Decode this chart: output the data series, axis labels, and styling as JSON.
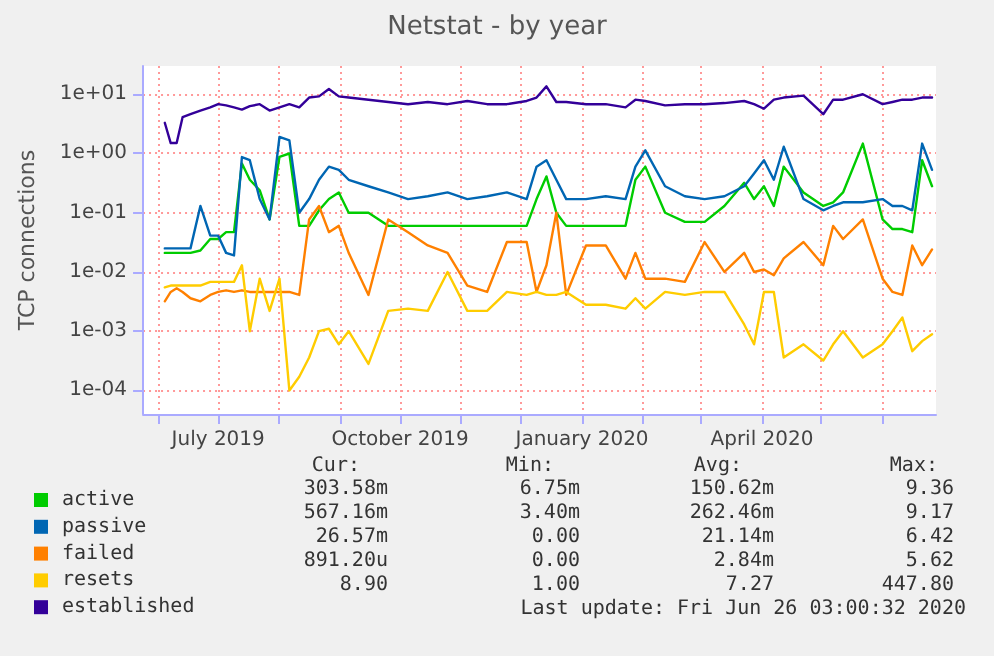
{
  "chart_data": {
    "type": "line",
    "title": "Netstat - by year",
    "ylabel": "TCP connections",
    "x": [
      "2019-06-04",
      "2019-06-07",
      "2019-06-10",
      "2019-06-13",
      "2019-06-17",
      "2019-06-22",
      "2019-06-27",
      "2019-07-01",
      "2019-07-05",
      "2019-07-09",
      "2019-07-13",
      "2019-07-17",
      "2019-07-22",
      "2019-07-27",
      "2019-08-01",
      "2019-08-06",
      "2019-08-11",
      "2019-08-16",
      "2019-08-21",
      "2019-08-26",
      "2019-08-31",
      "2019-09-05",
      "2019-09-15",
      "2019-09-25",
      "2019-10-05",
      "2019-10-15",
      "2019-10-25",
      "2019-11-04",
      "2019-11-14",
      "2019-11-24",
      "2019-12-04",
      "2019-12-09",
      "2019-12-14",
      "2019-12-19",
      "2019-12-24",
      "2020-01-03",
      "2020-01-13",
      "2020-01-23",
      "2020-01-28",
      "2020-02-02",
      "2020-02-12",
      "2020-02-22",
      "2020-03-03",
      "2020-03-13",
      "2020-03-23",
      "2020-03-28",
      "2020-04-02",
      "2020-04-07",
      "2020-04-12",
      "2020-04-22",
      "2020-05-02",
      "2020-05-07",
      "2020-05-12",
      "2020-05-22",
      "2020-06-01",
      "2020-06-06",
      "2020-06-11",
      "2020-06-16",
      "2020-06-21",
      "2020-06-26"
    ],
    "series": [
      {
        "name": "active",
        "color": "#00cc00",
        "values": [
          0.021,
          0.021,
          0.021,
          0.021,
          0.021,
          0.023,
          0.036,
          0.036,
          0.047,
          0.047,
          0.68,
          0.36,
          0.24,
          0.077,
          0.88,
          1.0,
          0.06,
          0.06,
          0.11,
          0.17,
          0.22,
          0.1,
          0.1,
          0.06,
          0.06,
          0.06,
          0.06,
          0.06,
          0.06,
          0.06,
          0.06,
          0.17,
          0.41,
          0.1,
          0.06,
          0.06,
          0.06,
          0.06,
          0.36,
          0.6,
          0.1,
          0.07,
          0.07,
          0.13,
          0.32,
          0.17,
          0.28,
          0.13,
          0.6,
          0.22,
          0.13,
          0.15,
          0.22,
          1.47,
          0.077,
          0.053,
          0.053,
          0.047,
          0.77,
          0.28
        ]
      },
      {
        "name": "passive",
        "color": "#0066b3",
        "values": [
          0.025,
          0.025,
          0.025,
          0.025,
          0.025,
          0.13,
          0.041,
          0.041,
          0.021,
          0.019,
          0.87,
          0.77,
          0.17,
          0.077,
          1.9,
          1.67,
          0.1,
          0.17,
          0.36,
          0.6,
          0.53,
          0.36,
          0.28,
          0.22,
          0.17,
          0.19,
          0.22,
          0.17,
          0.19,
          0.22,
          0.17,
          0.6,
          0.77,
          0.36,
          0.17,
          0.17,
          0.19,
          0.17,
          0.6,
          1.13,
          0.28,
          0.19,
          0.17,
          0.19,
          0.28,
          0.46,
          0.77,
          0.36,
          1.3,
          0.17,
          0.11,
          0.13,
          0.15,
          0.15,
          0.17,
          0.13,
          0.13,
          0.11,
          1.47,
          0.53
        ]
      },
      {
        "name": "failed",
        "color": "#ff8000",
        "values": [
          0.0032,
          0.0046,
          0.0053,
          0.0046,
          0.0036,
          0.0032,
          0.0041,
          0.0046,
          0.0049,
          0.0046,
          0.0049,
          0.0046,
          0.0046,
          0.0046,
          0.0046,
          0.0046,
          0.0041,
          0.077,
          0.13,
          0.047,
          0.06,
          0.021,
          0.0041,
          0.077,
          0.047,
          0.028,
          0.021,
          0.0059,
          0.0046,
          0.032,
          0.032,
          0.0046,
          0.013,
          0.1,
          0.0041,
          0.028,
          0.028,
          0.0077,
          0.021,
          0.0077,
          0.0077,
          0.0068,
          0.032,
          0.01,
          0.021,
          0.01,
          0.011,
          0.0088,
          0.017,
          0.032,
          0.013,
          0.06,
          0.036,
          0.077,
          0.0077,
          0.0046,
          0.0041,
          0.028,
          0.013,
          0.024
        ]
      },
      {
        "name": "resets",
        "color": "#ffcc00",
        "values": [
          0.0055,
          0.0059,
          0.0059,
          0.0059,
          0.0059,
          0.0059,
          0.0068,
          0.0068,
          0.0068,
          0.0068,
          0.013,
          0.001,
          0.0077,
          0.0022,
          0.0077,
          0.0001,
          0.00017,
          0.00036,
          0.001,
          0.0011,
          0.0006,
          0.001,
          0.00028,
          0.0022,
          0.0024,
          0.0022,
          0.01,
          0.0022,
          0.0022,
          0.0046,
          0.0041,
          0.0046,
          0.0041,
          0.0041,
          0.0046,
          0.0028,
          0.0028,
          0.0024,
          0.0036,
          0.0024,
          0.0046,
          0.0041,
          0.0046,
          0.0046,
          0.0013,
          0.0006,
          0.0046,
          0.0046,
          0.00036,
          0.0006,
          0.00032,
          0.0006,
          0.001,
          0.00036,
          0.0006,
          0.001,
          0.0017,
          0.00046,
          0.00068,
          0.00089
        ]
      },
      {
        "name": "established",
        "color": "#330099",
        "values": [
          3.3,
          1.5,
          1.5,
          4.1,
          4.6,
          5.3,
          6.0,
          6.8,
          6.5,
          6.0,
          5.5,
          6.3,
          6.8,
          5.3,
          6.0,
          6.8,
          6.0,
          8.8,
          9.2,
          12.3,
          9.2,
          8.8,
          8.1,
          7.4,
          6.8,
          7.4,
          6.8,
          7.7,
          6.8,
          6.8,
          7.7,
          8.8,
          13.6,
          7.4,
          7.4,
          6.8,
          6.8,
          6.0,
          8.1,
          7.7,
          6.5,
          6.8,
          6.8,
          7.1,
          7.7,
          6.8,
          5.7,
          8.1,
          8.8,
          9.5,
          4.6,
          8.1,
          8.1,
          10.0,
          6.8,
          7.4,
          8.1,
          8.1,
          8.8,
          8.8
        ]
      }
    ],
    "log": "y",
    "ylim": [
      4e-05,
      30
    ],
    "yticks": [
      {
        "value": 0.0001,
        "label": "1e-04"
      },
      {
        "value": 0.001,
        "label": "1e-03"
      },
      {
        "value": 0.01,
        "label": "1e-02"
      },
      {
        "value": 0.1,
        "label": "1e-01"
      },
      {
        "value": 1,
        "label": "1e+00"
      },
      {
        "value": 10,
        "label": "1e+01"
      }
    ],
    "xlim": [
      "2019-05-24",
      "2020-06-28"
    ],
    "xticks": [
      {
        "value": "2019-06-01",
        "label": null
      },
      {
        "value": "2019-07-01",
        "label": "July 2019"
      },
      {
        "value": "2019-08-01",
        "label": null
      },
      {
        "value": "2019-09-01",
        "label": null
      },
      {
        "value": "2019-10-01",
        "label": "October 2019"
      },
      {
        "value": "2019-11-01",
        "label": null
      },
      {
        "value": "2019-12-01",
        "label": null
      },
      {
        "value": "2020-01-01",
        "label": "January 2020"
      },
      {
        "value": "2020-02-01",
        "label": null
      },
      {
        "value": "2020-03-01",
        "label": null
      },
      {
        "value": "2020-04-01",
        "label": "April 2020"
      },
      {
        "value": "2020-05-01",
        "label": null
      },
      {
        "value": "2020-06-01",
        "label": null
      }
    ],
    "grid": true,
    "legend": "bottom left",
    "marker": "none",
    "line_style": "solid",
    "annotations": [
      "Cur:",
      "Min:",
      "Avg:",
      "Max:",
      "303.58m",
      "6.75m",
      "150.62m",
      "9.36",
      "567.16m",
      "3.40m",
      "262.46m",
      "9.17",
      "26.57m",
      "0.00",
      "21.14m",
      "6.42",
      "891.20u",
      "0.00",
      "2.84m",
      "5.62",
      "8.90",
      "1.00",
      "7.27",
      "447.80",
      "Last update: Fri Jun 26 03:00:32 2020"
    ]
  }
}
